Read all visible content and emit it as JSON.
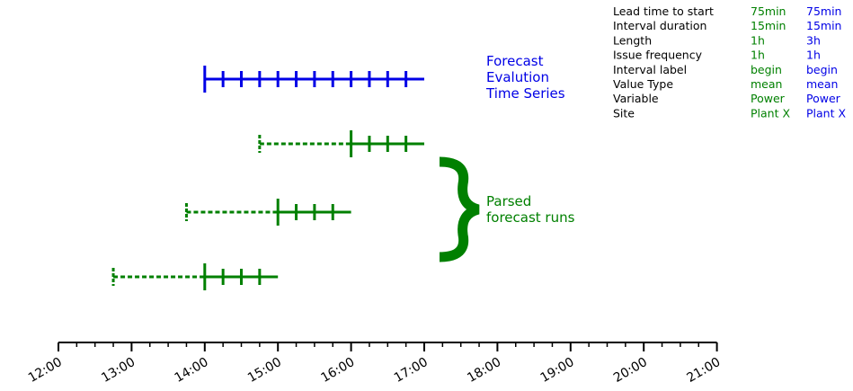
{
  "colors": {
    "evaluation": "#0000e6",
    "forecast_runs": "#008000",
    "axis": "#000000"
  },
  "chart_data": {
    "type": "diagram",
    "axis": {
      "tick_labels": [
        "12:00",
        "13:00",
        "14:00",
        "15:00",
        "16:00",
        "17:00",
        "18:00",
        "19:00",
        "20:00",
        "21:00"
      ],
      "major_ticks_hours": [
        12,
        13,
        14,
        15,
        16,
        17,
        18,
        19,
        20,
        21
      ],
      "minor_tick_interval_minutes": 15,
      "range_hours": [
        12,
        21
      ]
    },
    "evaluation_series": {
      "label_lines": [
        "Forecast",
        "Evalution",
        "Time Series"
      ],
      "start_hour": 14,
      "end_hour": 17,
      "interval_minutes": 15
    },
    "forecast_runs": {
      "label_lines": [
        "Parsed",
        "forecast runs"
      ],
      "runs": [
        {
          "issue_hour": 14.75,
          "start_hour": 16,
          "end_hour": 17,
          "interval_minutes": 15
        },
        {
          "issue_hour": 13.75,
          "start_hour": 15,
          "end_hour": 16,
          "interval_minutes": 15
        },
        {
          "issue_hour": 12.75,
          "start_hour": 14,
          "end_hour": 15,
          "interval_minutes": 15
        }
      ]
    }
  },
  "table": {
    "rows": [
      {
        "label": "Lead time to start",
        "forecast": "75min",
        "evaluation": "75min"
      },
      {
        "label": "Interval duration",
        "forecast": "15min",
        "evaluation": "15min"
      },
      {
        "label": "Length",
        "forecast": "1h",
        "evaluation": "3h"
      },
      {
        "label": "Issue frequency",
        "forecast": "1h",
        "evaluation": "1h"
      },
      {
        "label": "Interval label",
        "forecast": "begin",
        "evaluation": "begin"
      },
      {
        "label": "Value Type",
        "forecast": "mean",
        "evaluation": "mean"
      },
      {
        "label": "Variable",
        "forecast": "Power",
        "evaluation": "Power"
      },
      {
        "label": "Site",
        "forecast": "Plant X",
        "evaluation": "Plant X"
      }
    ]
  }
}
